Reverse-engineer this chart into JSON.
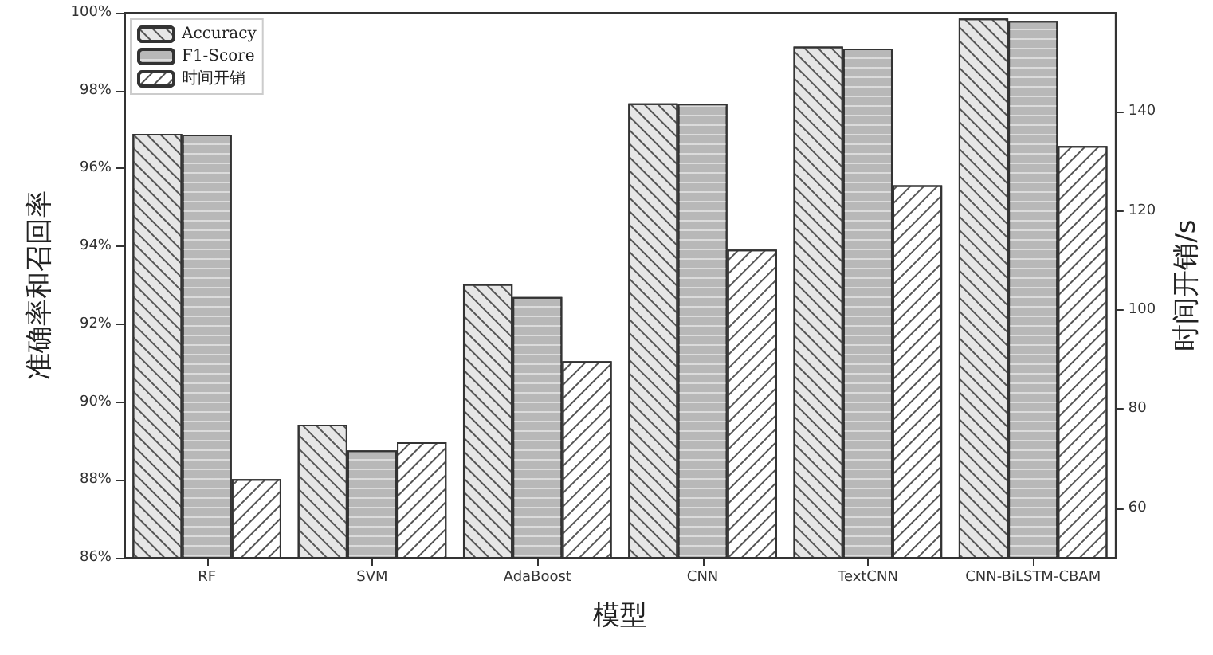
{
  "chart_data": {
    "type": "bar",
    "xlabel": "模型",
    "ylabel": "准确率和召回率",
    "y2label": "时间开销/s",
    "categories": [
      "RF",
      "SVM",
      "AdaBoost",
      "CNN",
      "TextCNN",
      "CNN-BiLSTM-CBAM"
    ],
    "series": [
      {
        "name": "Accuracy",
        "color": "#e6e6e6",
        "values": [
          96.89,
          89.42,
          93.03,
          97.67,
          99.13,
          99.85
        ]
      },
      {
        "name": "F1-Score",
        "color": "#b8b8b8",
        "values": [
          96.87,
          88.76,
          92.7,
          97.66,
          99.08,
          99.79
        ]
      },
      {
        "name": "时间开销",
        "color": "#ffffff",
        "axis": "y2",
        "values": [
          65.9,
          73.3,
          89.7,
          112.2,
          125.2,
          133.1
        ]
      }
    ],
    "ylim": [
      86,
      100
    ],
    "yticks": [
      {
        "value": 86,
        "label": "86%"
      },
      {
        "value": 88,
        "label": "88%"
      },
      {
        "value": 90,
        "label": "90%"
      },
      {
        "value": 92,
        "label": "92%"
      },
      {
        "value": 94,
        "label": "94%"
      },
      {
        "value": 96,
        "label": "96%"
      },
      {
        "value": 98,
        "label": "98%"
      },
      {
        "value": 100,
        "label": "100%"
      }
    ],
    "y2lim": [
      50,
      160
    ],
    "y2ticks": [
      60,
      80,
      100,
      120,
      140
    ],
    "grid": false,
    "legend": "top left"
  }
}
